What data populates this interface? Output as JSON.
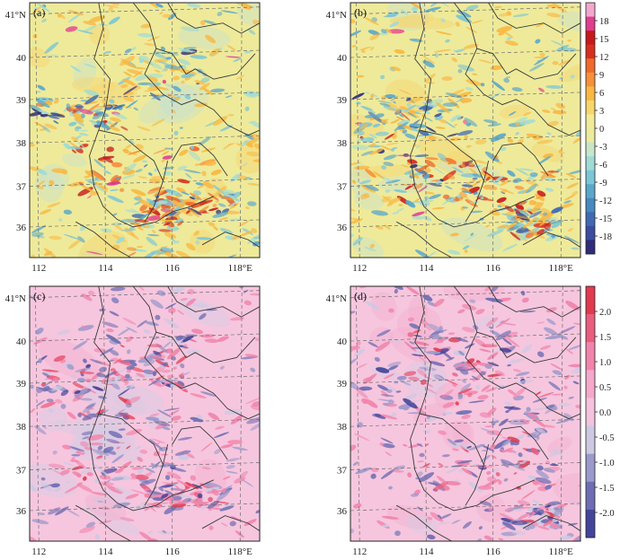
{
  "figure": {
    "panels": [
      {
        "id": "a",
        "label": "(a)",
        "scheme": "warm",
        "seed": 11,
        "hot": [
          [
            0.48,
            0.66,
            0.3,
            0.1,
            1.0
          ],
          [
            0.72,
            0.78,
            0.18,
            0.05,
            0.9
          ],
          [
            0.55,
            0.88,
            0.12,
            0.12,
            0.8
          ],
          [
            0.22,
            0.44,
            0.2,
            0.06,
            0.6
          ],
          [
            0.6,
            0.28,
            0.18,
            0.1,
            0.4
          ]
        ]
      },
      {
        "id": "b",
        "label": "(b)",
        "scheme": "warm",
        "seed": 23,
        "hot": [
          [
            0.45,
            0.7,
            0.22,
            0.1,
            1.0
          ],
          [
            0.68,
            0.74,
            0.22,
            0.08,
            0.9
          ],
          [
            0.15,
            0.58,
            0.12,
            0.25,
            0.6
          ],
          [
            0.35,
            0.46,
            0.18,
            0.08,
            0.5
          ],
          [
            0.8,
            0.86,
            0.1,
            0.06,
            0.7
          ]
        ]
      },
      {
        "id": "c",
        "label": "(c)",
        "scheme": "pink",
        "seed": 37,
        "hot": [
          [
            0.25,
            0.4,
            0.2,
            0.12,
            1.0
          ],
          [
            0.5,
            0.3,
            0.2,
            0.1,
            0.8
          ],
          [
            0.4,
            0.7,
            0.25,
            0.1,
            0.6
          ],
          [
            0.68,
            0.83,
            0.18,
            0.05,
            0.6
          ]
        ]
      },
      {
        "id": "d",
        "label": "(d)",
        "scheme": "pink",
        "seed": 51,
        "hot": [
          [
            0.6,
            0.7,
            0.3,
            0.1,
            1.0
          ],
          [
            0.3,
            0.4,
            0.25,
            0.12,
            0.9
          ],
          [
            0.75,
            0.55,
            0.15,
            0.18,
            0.8
          ],
          [
            0.5,
            0.25,
            0.25,
            0.1,
            0.6
          ],
          [
            0.8,
            0.9,
            0.12,
            0.05,
            0.6
          ]
        ]
      }
    ],
    "lon_labels": [
      "112",
      "114",
      "116",
      "118°E"
    ],
    "lat_labels": [
      "41°N",
      "40",
      "39",
      "38",
      "37",
      "36"
    ],
    "colorbar_top": {
      "ticks": [
        "18",
        "15",
        "12",
        "9",
        "6",
        "3",
        "0",
        "-3",
        "-6",
        "-9",
        "-12",
        "-15",
        "-18"
      ],
      "colors": [
        "#f3a7cf",
        "#e13c8e",
        "#c7191c",
        "#d7301f",
        "#ef6a2c",
        "#f6903a",
        "#f9b843",
        "#f7d66a",
        "#f1eb98",
        "#eceb9e",
        "#c9e7c8",
        "#9fdbd5",
        "#7cc6d6",
        "#5aa7ca",
        "#4889bf",
        "#3f6ab2",
        "#3c4c9f",
        "#2f2c7a"
      ]
    },
    "colorbar_bottom": {
      "ticks": [
        "2.0",
        "1.5",
        "1.0",
        "0.5",
        "0.0",
        "-0.5",
        "-1.0",
        "-1.5",
        "-2.0"
      ],
      "colors": [
        "#e23a4f",
        "#ea5d7e",
        "#f184ab",
        "#f5a8cb",
        "#f4c2dd",
        "#cdc9e2",
        "#9b9acb",
        "#6e6db3",
        "#43449a"
      ]
    }
  }
}
